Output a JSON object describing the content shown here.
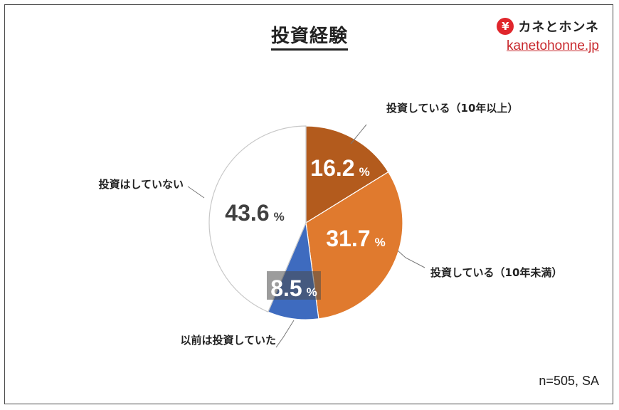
{
  "header": {
    "title": "投資経験",
    "brand_mark": "¥",
    "brand_name": "カネとホンネ",
    "brand_url": "kanetohonne.jp"
  },
  "footer": {
    "note": "n=505, SA"
  },
  "chart_data": {
    "type": "pie",
    "title": "投資経験",
    "unit": "%",
    "start": "12 o'clock, clockwise",
    "slices": [
      {
        "label": "投資している（10年以上）",
        "value": 16.2,
        "value_text": "16.2",
        "color": "#b35b1d"
      },
      {
        "label": "投資している（10年未満）",
        "value": 31.7,
        "value_text": "31.7",
        "color": "#e07a2e"
      },
      {
        "label": "以前は投資していた",
        "value": 8.5,
        "value_text": "8.5",
        "color": "#3e6bbf"
      },
      {
        "label": "投資はしていない",
        "value": 43.6,
        "value_text": "43.6",
        "color": "#ffffff"
      }
    ]
  }
}
